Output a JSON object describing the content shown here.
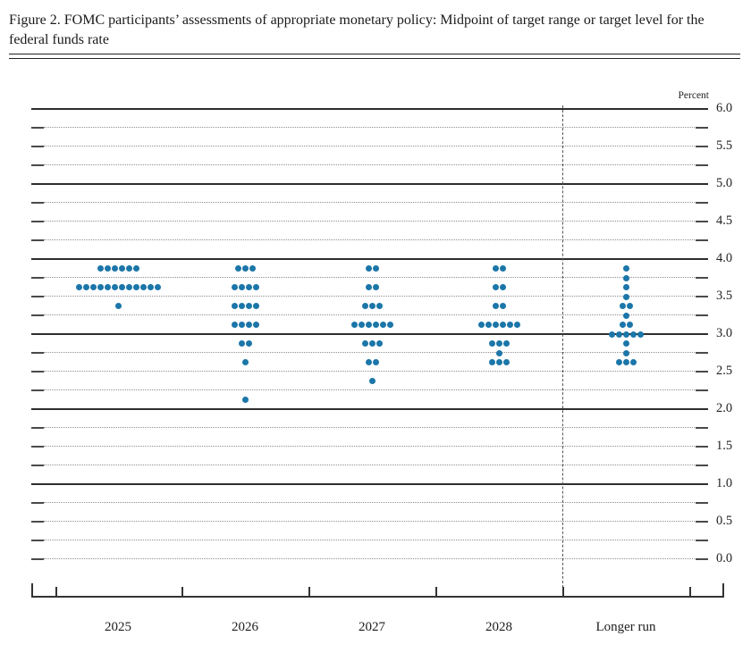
{
  "page": {
    "title": "Figure 2. FOMC participants’ assessments of appropriate monetary policy: Midpoint of target range or target level for the federal funds rate"
  },
  "chart_data": {
    "type": "scatter",
    "subtype": "fomc-dot-plot",
    "title": "Figure 2. FOMC participants’ assessments of appropriate monetary policy: Midpoint of target range or target level for the federal funds rate",
    "ylabel": "Percent",
    "y_axis": {
      "min": 0.0,
      "max": 6.0,
      "label_step": 0.5,
      "grid_step": 0.25,
      "tick_labels": [
        "6.0",
        "5.5",
        "5.0",
        "4.5",
        "4.0",
        "3.5",
        "3.0",
        "2.5",
        "2.0",
        "1.5",
        "1.0",
        "0.5",
        "0.0"
      ],
      "solid_gridlines": [
        1.0,
        2.0,
        3.0,
        4.0,
        5.0,
        6.0
      ],
      "grid": true
    },
    "x_categories": [
      "2025",
      "2026",
      "2027",
      "2028",
      "Longer run"
    ],
    "dashed_divider_before_category": "Longer run",
    "series": [
      {
        "category": "2025",
        "dots": [
          {
            "rate": 3.875,
            "count": 6
          },
          {
            "rate": 3.625,
            "count": 12
          },
          {
            "rate": 3.375,
            "count": 1
          }
        ]
      },
      {
        "category": "2026",
        "dots": [
          {
            "rate": 3.875,
            "count": 3
          },
          {
            "rate": 3.625,
            "count": 4
          },
          {
            "rate": 3.375,
            "count": 4
          },
          {
            "rate": 3.125,
            "count": 4
          },
          {
            "rate": 2.875,
            "count": 2
          },
          {
            "rate": 2.625,
            "count": 1
          },
          {
            "rate": 2.125,
            "count": 1
          }
        ]
      },
      {
        "category": "2027",
        "dots": [
          {
            "rate": 3.875,
            "count": 2
          },
          {
            "rate": 3.625,
            "count": 2
          },
          {
            "rate": 3.375,
            "count": 3
          },
          {
            "rate": 3.125,
            "count": 6
          },
          {
            "rate": 2.875,
            "count": 3
          },
          {
            "rate": 2.625,
            "count": 2
          },
          {
            "rate": 2.375,
            "count": 1
          }
        ]
      },
      {
        "category": "2028",
        "dots": [
          {
            "rate": 3.875,
            "count": 2
          },
          {
            "rate": 3.625,
            "count": 2
          },
          {
            "rate": 3.375,
            "count": 2
          },
          {
            "rate": 3.125,
            "count": 6
          },
          {
            "rate": 2.875,
            "count": 3
          },
          {
            "rate": 2.75,
            "count": 1
          },
          {
            "rate": 2.625,
            "count": 3
          }
        ]
      },
      {
        "category": "Longer run",
        "dots": [
          {
            "rate": 3.875,
            "count": 1
          },
          {
            "rate": 3.75,
            "count": 1
          },
          {
            "rate": 3.625,
            "count": 1
          },
          {
            "rate": 3.5,
            "count": 1
          },
          {
            "rate": 3.375,
            "count": 2
          },
          {
            "rate": 3.25,
            "count": 1
          },
          {
            "rate": 3.125,
            "count": 2
          },
          {
            "rate": 3.0,
            "count": 5
          },
          {
            "rate": 2.875,
            "count": 1
          },
          {
            "rate": 2.75,
            "count": 1
          },
          {
            "rate": 2.625,
            "count": 3
          }
        ]
      }
    ],
    "colors": {
      "dot": "#1b76a9",
      "solid_line": "#2e2e2e",
      "dotted_line": "#8f8f8f",
      "axis": "#333333",
      "text": "#1c1c1c"
    }
  }
}
